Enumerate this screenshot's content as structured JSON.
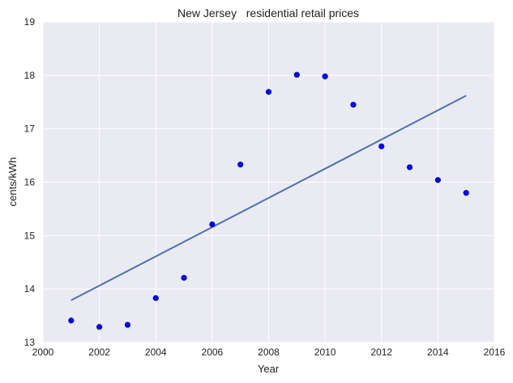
{
  "chart_data": {
    "type": "scatter",
    "title": "New Jersey   residential retail prices",
    "xlabel": "Year",
    "ylabel": "cents/kWh",
    "xlim": [
      2000,
      2016
    ],
    "ylim": [
      13,
      19
    ],
    "xticks": [
      "2000",
      "2002",
      "2004",
      "2006",
      "2008",
      "2010",
      "2012",
      "2014",
      "2016"
    ],
    "yticks": [
      "13",
      "14",
      "15",
      "16",
      "17",
      "18",
      "19"
    ],
    "grid": true,
    "series": [
      {
        "kind": "scatter",
        "x": [
          2001,
          2002,
          2003,
          2004,
          2005,
          2006,
          2007,
          2008,
          2009,
          2010,
          2011,
          2012,
          2013,
          2014,
          2015
        ],
        "y": [
          13.41,
          13.29,
          13.33,
          13.83,
          14.21,
          15.21,
          16.33,
          17.69,
          18.01,
          17.98,
          17.45,
          16.67,
          16.28,
          16.04,
          15.8
        ]
      },
      {
        "kind": "line",
        "x": [
          2001,
          2015
        ],
        "y": [
          13.79,
          17.62
        ]
      }
    ],
    "colors": {
      "points": "#0000ff",
      "points_edge": "#000080",
      "trend": "#4c72b0",
      "plot_bg": "#eaeaf2",
      "grid": "#ffffff"
    }
  }
}
